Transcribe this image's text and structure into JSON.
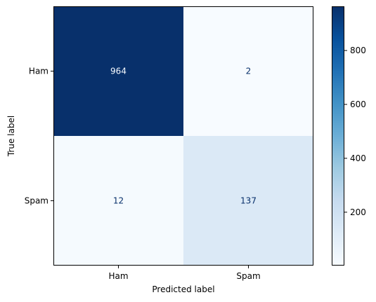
{
  "chart_data": {
    "type": "heatmap",
    "title": "",
    "xlabel": "Predicted label",
    "ylabel": "True label",
    "x_categories": [
      "Ham",
      "Spam"
    ],
    "y_categories": [
      "Ham",
      "Spam"
    ],
    "matrix": [
      [
        964,
        2
      ],
      [
        12,
        137
      ]
    ],
    "colormap": "Blues",
    "color_range": [
      2,
      964
    ],
    "colorbar_ticks": [
      200,
      400,
      600,
      800
    ],
    "grid": false
  }
}
